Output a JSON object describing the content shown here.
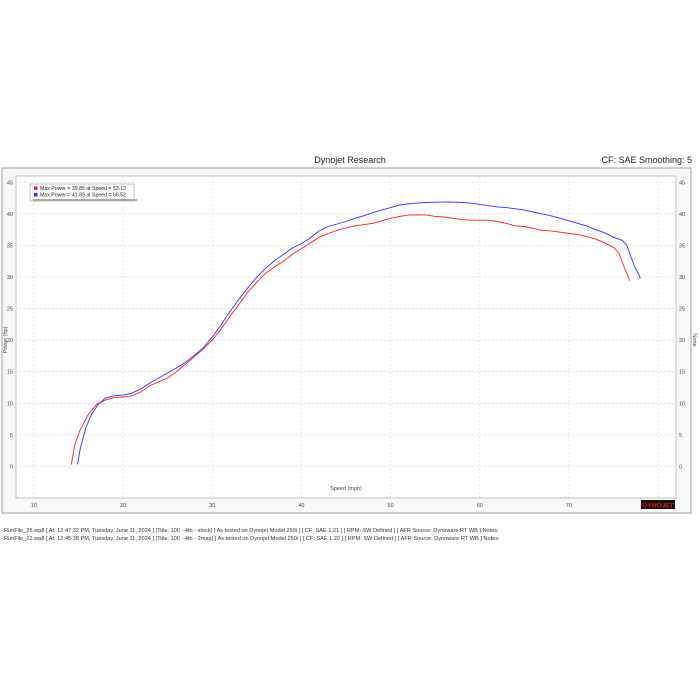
{
  "header": {
    "title": "Dynojet Research",
    "cf_smoothing": "CF: SAE Smoothing: 5"
  },
  "logo": "DYNOJET",
  "footer": {
    "run1": "RunFile_25.wp8 [ At: 12:47:32 PM, Tuesday, June 11, 2024 ] [Title: 100 - 4th - stock]  [ As tested on Dynojet Model 250i ] [ CF: SAE 1.21 ] [ RPM: SW Defined ] [ AFR Source: Dynoware RT WB ] Notes:",
    "run2": "RunFile_22.wp8 [ At: 12:45:38 PM, Tuesday, June 11, 2024 ] [Title: 100 - 4th - 2map]  [ As tested on Dynojet Model 250i ] [ CF: SAE 1.20 ] [ RPM: SW Defined ] [ AFR Source: Dynoware RT WB ] Notes:"
  },
  "chart_data": {
    "type": "line",
    "xlabel": "Speed (mph)",
    "ylabel": "Power (hp)",
    "y2label": "None",
    "xlim": [
      8,
      82
    ],
    "ylim": [
      -5,
      46
    ],
    "xticks": [
      10,
      20,
      30,
      40,
      50,
      60,
      70,
      80
    ],
    "yticks": [
      0,
      5,
      10,
      15,
      20,
      25,
      30,
      35,
      40,
      45
    ],
    "grid": true,
    "legend_position": "top-left",
    "series": [
      {
        "name": "Max Power = 39.85 at Speed = 53.13",
        "color": "#ff2020",
        "points": [
          [
            14.2,
            0.3
          ],
          [
            14.6,
            3.5
          ],
          [
            15.2,
            5.8
          ],
          [
            16,
            8
          ],
          [
            17,
            9.8
          ],
          [
            18,
            10.5
          ],
          [
            19,
            10.9
          ],
          [
            20,
            11
          ],
          [
            21,
            11.2
          ],
          [
            22,
            11.8
          ],
          [
            23,
            12.8
          ],
          [
            24,
            13.4
          ],
          [
            25,
            14
          ],
          [
            26,
            15
          ],
          [
            27,
            16.2
          ],
          [
            28,
            17.4
          ],
          [
            29,
            18.6
          ],
          [
            30,
            20
          ],
          [
            31,
            21.8
          ],
          [
            32,
            23.8
          ],
          [
            33,
            25.7
          ],
          [
            34,
            27.6
          ],
          [
            35,
            29.2
          ],
          [
            36,
            30.6
          ],
          [
            37,
            31.6
          ],
          [
            38,
            32.5
          ],
          [
            39,
            33.6
          ],
          [
            40,
            34.5
          ],
          [
            41,
            35.4
          ],
          [
            42,
            36.3
          ],
          [
            43,
            36.9
          ],
          [
            44,
            37.4
          ],
          [
            45,
            37.8
          ],
          [
            46,
            38.1
          ],
          [
            47,
            38.3
          ],
          [
            48,
            38.5
          ],
          [
            49,
            38.9
          ],
          [
            50,
            39.3
          ],
          [
            51,
            39.6
          ],
          [
            52,
            39.8
          ],
          [
            53.13,
            39.85
          ],
          [
            54,
            39.8
          ],
          [
            55,
            39.6
          ],
          [
            56,
            39.5
          ],
          [
            57,
            39.3
          ],
          [
            58,
            39.1
          ],
          [
            59,
            39
          ],
          [
            60,
            39
          ],
          [
            61,
            39
          ],
          [
            62,
            38.8
          ],
          [
            63,
            38.5
          ],
          [
            64,
            38.1
          ],
          [
            65,
            38
          ],
          [
            66,
            37.7
          ],
          [
            67,
            37.4
          ],
          [
            68,
            37.3
          ],
          [
            69,
            37.1
          ],
          [
            70,
            36.9
          ],
          [
            71,
            36.7
          ],
          [
            72,
            36.4
          ],
          [
            73,
            36
          ],
          [
            74,
            35.4
          ],
          [
            75,
            34.7
          ],
          [
            75.6,
            33.8
          ],
          [
            76.2,
            31.5
          ],
          [
            76.6,
            30.2
          ],
          [
            76.8,
            29.4
          ]
        ]
      },
      {
        "name": "Max Power = 41.89 at Speed = 56.52",
        "color": "#3030ff",
        "points": [
          [
            14.9,
            0.3
          ],
          [
            15.2,
            2.8
          ],
          [
            15.8,
            6
          ],
          [
            16.5,
            8.3
          ],
          [
            17.2,
            9.8
          ],
          [
            18,
            10.8
          ],
          [
            19,
            11.2
          ],
          [
            20,
            11.3
          ],
          [
            21,
            11.6
          ],
          [
            22,
            12.3
          ],
          [
            23,
            13.2
          ],
          [
            24,
            14
          ],
          [
            25,
            14.8
          ],
          [
            26,
            15.6
          ],
          [
            27,
            16.5
          ],
          [
            28,
            17.6
          ],
          [
            29,
            18.8
          ],
          [
            30,
            20.5
          ],
          [
            31,
            22.4
          ],
          [
            32,
            24.6
          ],
          [
            33,
            26.5
          ],
          [
            34,
            28.3
          ],
          [
            35,
            30
          ],
          [
            36,
            31.4
          ],
          [
            37,
            32.6
          ],
          [
            38,
            33.6
          ],
          [
            39,
            34.6
          ],
          [
            40,
            35.3
          ],
          [
            41,
            36.2
          ],
          [
            42,
            37.3
          ],
          [
            43,
            38
          ],
          [
            44,
            38.4
          ],
          [
            45,
            38.8
          ],
          [
            46,
            39.3
          ],
          [
            47,
            39.7
          ],
          [
            48,
            40.2
          ],
          [
            49,
            40.6
          ],
          [
            50,
            41
          ],
          [
            51,
            41.4
          ],
          [
            52,
            41.6
          ],
          [
            53,
            41.7
          ],
          [
            54,
            41.8
          ],
          [
            55,
            41.85
          ],
          [
            56.52,
            41.89
          ],
          [
            57,
            41.87
          ],
          [
            58,
            41.8
          ],
          [
            59,
            41.7
          ],
          [
            60,
            41.5
          ],
          [
            61,
            41.3
          ],
          [
            62,
            41.1
          ],
          [
            63,
            41
          ],
          [
            64,
            40.8
          ],
          [
            65,
            40.6
          ],
          [
            66,
            40.3
          ],
          [
            67,
            40
          ],
          [
            68,
            39.7
          ],
          [
            69,
            39.3
          ],
          [
            70,
            38.9
          ],
          [
            71,
            38.5
          ],
          [
            72,
            38.1
          ],
          [
            73,
            37.5
          ],
          [
            74,
            37
          ],
          [
            75,
            36.3
          ],
          [
            76,
            35.8
          ],
          [
            76.5,
            35
          ],
          [
            77,
            33
          ],
          [
            77.4,
            31.5
          ],
          [
            77.8,
            30.5
          ],
          [
            78,
            29.8
          ]
        ]
      }
    ]
  }
}
